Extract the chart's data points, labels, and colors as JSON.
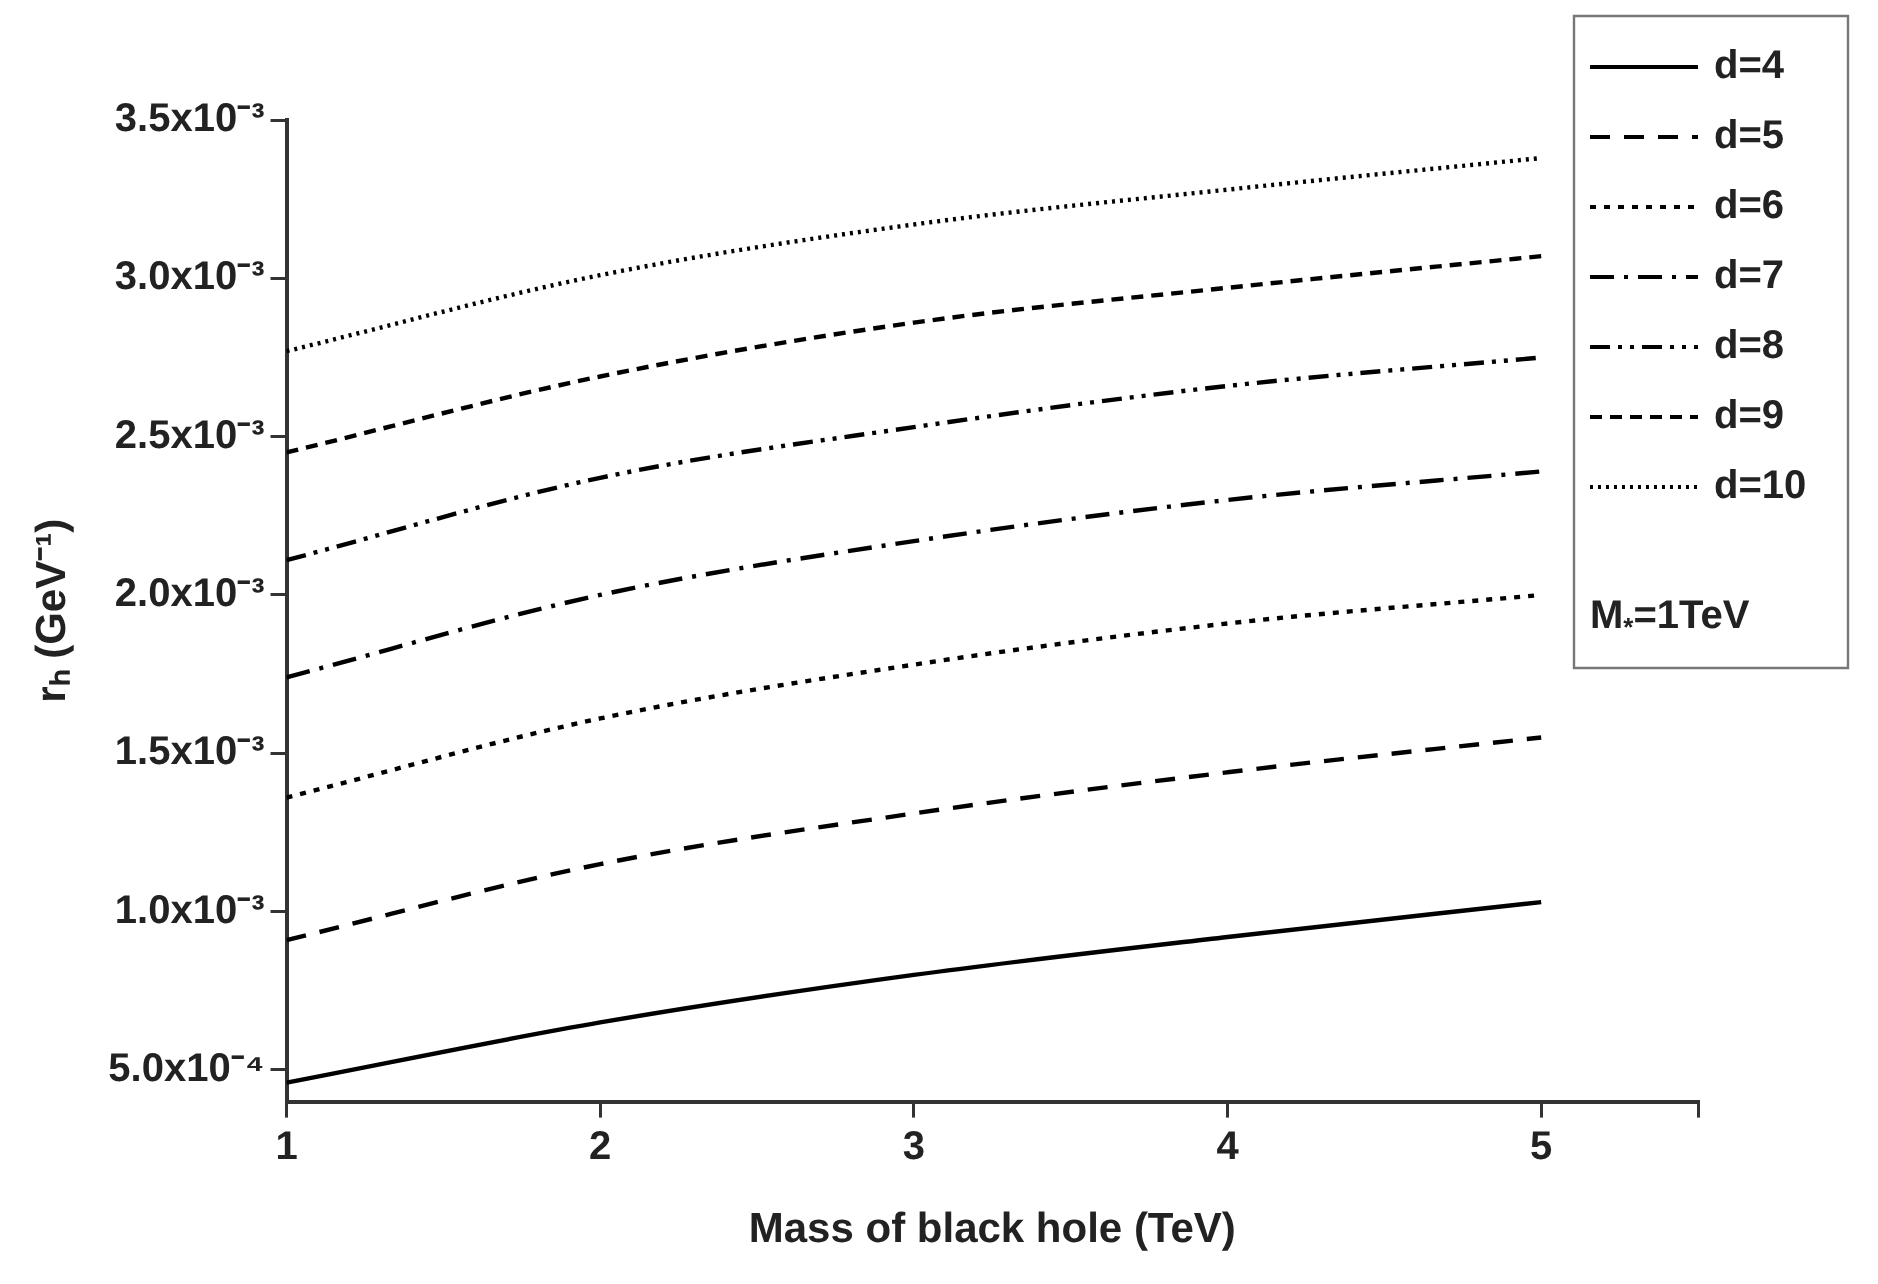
{
  "chart_data": {
    "type": "line",
    "xlabel": "Mass of black hole (TeV)",
    "ylabel": "rₕ (GeV⁻¹)",
    "x": [
      1,
      2,
      3,
      4,
      5
    ],
    "series": [
      {
        "name": "d=4",
        "color": "#000000",
        "line_style": "solid",
        "values": [
          0.00046,
          0.00065,
          0.0008,
          0.00092,
          0.00103
        ]
      },
      {
        "name": "d=5",
        "color": "#000000",
        "line_style": "dashed",
        "values": [
          0.00091,
          0.00115,
          0.00131,
          0.00144,
          0.00155
        ]
      },
      {
        "name": "d=6",
        "color": "#000000",
        "line_style": "dotted",
        "values": [
          0.00136,
          0.00161,
          0.00178,
          0.00191,
          0.002
        ]
      },
      {
        "name": "d=7",
        "color": "#000000",
        "line_style": "dashdot",
        "values": [
          0.00174,
          0.002,
          0.00217,
          0.0023,
          0.00239
        ]
      },
      {
        "name": "d=8",
        "color": "#000000",
        "line_style": "dashdotdot",
        "values": [
          0.00211,
          0.00237,
          0.00253,
          0.00266,
          0.00275
        ]
      },
      {
        "name": "d=9",
        "color": "#000000",
        "line_style": "shortdash",
        "values": [
          0.00245,
          0.00269,
          0.00286,
          0.00297,
          0.00307
        ]
      },
      {
        "name": "d=10",
        "color": "#000000",
        "line_style": "densedot",
        "values": [
          0.00277,
          0.00301,
          0.00317,
          0.00328,
          0.00338
        ]
      }
    ],
    "xlim": [
      1,
      5.5
    ],
    "xticks": [
      1,
      2,
      3,
      4,
      5,
      {
        "value": 5.5,
        "label": null
      }
    ],
    "ylim": [
      0.0004,
      0.0035
    ],
    "yticks": [
      {
        "value": 0.0005,
        "label": "5.0x10⁻⁴"
      },
      {
        "value": 0.001,
        "label": "1.0x10⁻³"
      },
      {
        "value": 0.0015,
        "label": "1.5x10⁻³"
      },
      {
        "value": 0.002,
        "label": "2.0x10⁻³"
      },
      {
        "value": 0.0025,
        "label": "2.5x10⁻³"
      },
      {
        "value": 0.003,
        "label": "3.0x10⁻³"
      },
      {
        "value": 0.0035,
        "label": "3.5x10⁻³"
      }
    ],
    "grid": false,
    "legend": "top right",
    "marker": "none",
    "annotations": [
      "M$_{*}$=1TeV"
    ]
  }
}
